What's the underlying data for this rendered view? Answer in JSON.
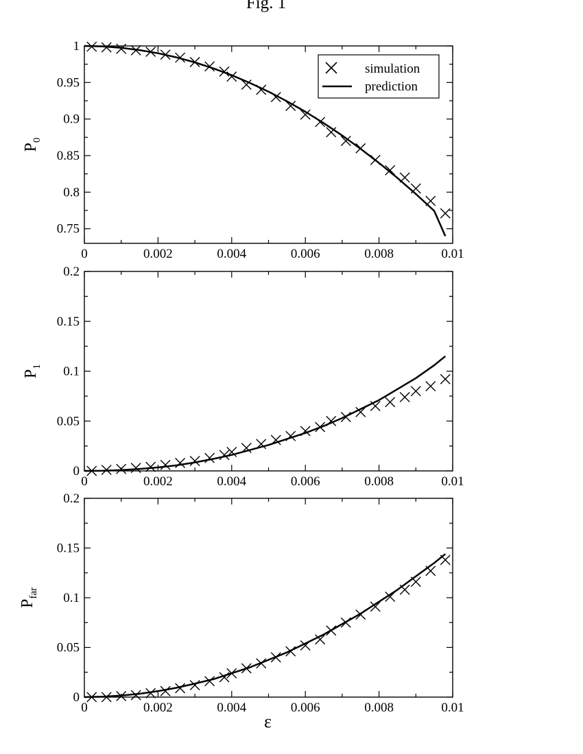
{
  "figure_title": "Fig. 1",
  "legend": {
    "simulation_label": "simulation",
    "prediction_label": "prediction"
  },
  "chart_data": [
    {
      "type": "line",
      "ylabel_main": "P",
      "ylabel_sub": "0",
      "xlabel": "",
      "xlim": [
        0,
        0.01
      ],
      "ylim": [
        0.73,
        1.0
      ],
      "x_ticks": [
        "0",
        "0.002",
        "0.004",
        "0.006",
        "0.008",
        "0.01"
      ],
      "y_ticks": [
        {
          "v": 0.75,
          "label": "0.75"
        },
        {
          "v": 0.8,
          "label": "0.8"
        },
        {
          "v": 0.85,
          "label": "0.85"
        },
        {
          "v": 0.9,
          "label": "0.9"
        },
        {
          "v": 0.95,
          "label": "0.95"
        },
        {
          "v": 1.0,
          "label": "1"
        }
      ],
      "legend_position": "top-right",
      "series": [
        {
          "name": "simulation",
          "marker": "x",
          "x": [
            0.0002,
            0.0006,
            0.001,
            0.0014,
            0.0018,
            0.0022,
            0.0026,
            0.003,
            0.0034,
            0.0038,
            0.004,
            0.0044,
            0.0048,
            0.0052,
            0.0056,
            0.006,
            0.0064,
            0.0067,
            0.0071,
            0.0075,
            0.0079,
            0.0083,
            0.0087,
            0.009,
            0.0094,
            0.0098
          ],
          "y": [
            0.999,
            0.998,
            0.996,
            0.994,
            0.992,
            0.988,
            0.984,
            0.978,
            0.972,
            0.965,
            0.958,
            0.947,
            0.94,
            0.93,
            0.918,
            0.906,
            0.896,
            0.882,
            0.87,
            0.86,
            0.844,
            0.83,
            0.82,
            0.805,
            0.788,
            0.771
          ]
        },
        {
          "name": "prediction",
          "marker": "line",
          "x": [
            0,
            0.0005,
            0.001,
            0.0015,
            0.002,
            0.0025,
            0.003,
            0.0035,
            0.004,
            0.0045,
            0.005,
            0.0055,
            0.006,
            0.0065,
            0.007,
            0.0075,
            0.008,
            0.0085,
            0.009,
            0.0095,
            0.0098
          ],
          "y": [
            1.0,
            0.9993,
            0.9975,
            0.9943,
            0.99,
            0.9843,
            0.9775,
            0.9693,
            0.96,
            0.9493,
            0.9375,
            0.9243,
            0.91,
            0.8943,
            0.8775,
            0.8593,
            0.84,
            0.8193,
            0.7975,
            0.7743,
            0.7398
          ]
        }
      ]
    },
    {
      "type": "line",
      "ylabel_main": "P",
      "ylabel_sub": "1",
      "xlabel": "",
      "xlim": [
        0,
        0.01
      ],
      "ylim": [
        0,
        0.2
      ],
      "x_ticks": [
        "0",
        "0.002",
        "0.004",
        "0.006",
        "0.008",
        "0.01"
      ],
      "y_ticks": [
        {
          "v": 0,
          "label": "0"
        },
        {
          "v": 0.05,
          "label": "0.05"
        },
        {
          "v": 0.1,
          "label": "0.1"
        },
        {
          "v": 0.15,
          "label": "0.15"
        },
        {
          "v": 0.2,
          "label": "0.2"
        }
      ],
      "series": [
        {
          "name": "simulation",
          "marker": "x",
          "x": [
            0.0002,
            0.0006,
            0.001,
            0.0014,
            0.0018,
            0.0022,
            0.0026,
            0.003,
            0.0034,
            0.0038,
            0.004,
            0.0044,
            0.0048,
            0.0052,
            0.0056,
            0.006,
            0.0064,
            0.0067,
            0.0071,
            0.0075,
            0.0079,
            0.0083,
            0.0087,
            0.009,
            0.0094,
            0.0098
          ],
          "y": [
            0.0,
            0.001,
            0.002,
            0.003,
            0.004,
            0.006,
            0.008,
            0.01,
            0.013,
            0.016,
            0.019,
            0.023,
            0.027,
            0.031,
            0.035,
            0.04,
            0.044,
            0.05,
            0.054,
            0.059,
            0.065,
            0.069,
            0.074,
            0.08,
            0.085,
            0.092
          ]
        },
        {
          "name": "prediction",
          "marker": "line",
          "x": [
            0,
            0.0005,
            0.001,
            0.0015,
            0.002,
            0.0025,
            0.003,
            0.0035,
            0.004,
            0.0045,
            0.005,
            0.0055,
            0.006,
            0.0065,
            0.007,
            0.0075,
            0.008,
            0.0085,
            0.009,
            0.0095,
            0.0098
          ],
          "y": [
            0,
            0.0002,
            0.0008,
            0.002,
            0.0035,
            0.0056,
            0.0085,
            0.012,
            0.016,
            0.021,
            0.026,
            0.032,
            0.038,
            0.045,
            0.053,
            0.062,
            0.071,
            0.082,
            0.093,
            0.106,
            0.115
          ]
        }
      ]
    },
    {
      "type": "line",
      "ylabel_main": "P",
      "ylabel_sub": "far",
      "xlabel": "ε",
      "xlim": [
        0,
        0.01
      ],
      "ylim": [
        0,
        0.2
      ],
      "x_ticks": [
        "0",
        "0.002",
        "0.004",
        "0.006",
        "0.008",
        "0.01"
      ],
      "y_ticks": [
        {
          "v": 0,
          "label": "0"
        },
        {
          "v": 0.05,
          "label": "0.05"
        },
        {
          "v": 0.1,
          "label": "0.1"
        },
        {
          "v": 0.15,
          "label": "0.15"
        },
        {
          "v": 0.2,
          "label": "0.2"
        }
      ],
      "series": [
        {
          "name": "simulation",
          "marker": "x",
          "x": [
            0.0002,
            0.0006,
            0.001,
            0.0014,
            0.0018,
            0.0022,
            0.0026,
            0.003,
            0.0034,
            0.0038,
            0.004,
            0.0044,
            0.0048,
            0.0052,
            0.0056,
            0.006,
            0.0064,
            0.0067,
            0.0071,
            0.0075,
            0.0079,
            0.0083,
            0.0087,
            0.009,
            0.0094,
            0.0098
          ],
          "y": [
            0.0,
            0.0,
            0.001,
            0.002,
            0.004,
            0.006,
            0.009,
            0.012,
            0.016,
            0.02,
            0.024,
            0.029,
            0.034,
            0.04,
            0.046,
            0.052,
            0.058,
            0.067,
            0.075,
            0.083,
            0.091,
            0.101,
            0.108,
            0.116,
            0.127,
            0.138
          ]
        },
        {
          "name": "prediction",
          "marker": "line",
          "x": [
            0,
            0.0005,
            0.001,
            0.0015,
            0.002,
            0.0025,
            0.003,
            0.0035,
            0.004,
            0.0045,
            0.005,
            0.0055,
            0.006,
            0.0065,
            0.007,
            0.0075,
            0.008,
            0.0085,
            0.009,
            0.0095,
            0.0098
          ],
          "y": [
            0,
            0.0004,
            0.0015,
            0.0034,
            0.006,
            0.0094,
            0.0135,
            0.018,
            0.024,
            0.03,
            0.0375,
            0.045,
            0.054,
            0.063,
            0.0735,
            0.084,
            0.096,
            0.108,
            0.1215,
            0.135,
            0.144
          ]
        }
      ]
    }
  ]
}
